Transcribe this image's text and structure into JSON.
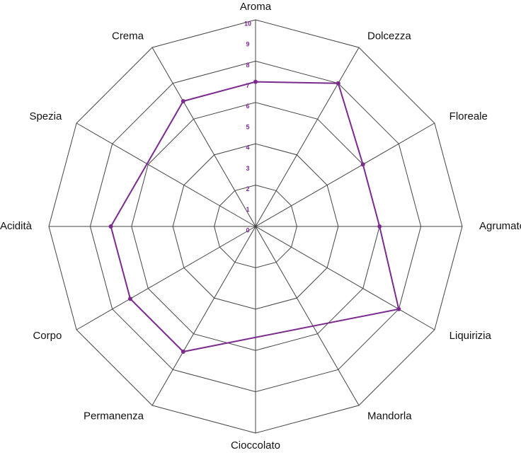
{
  "chart_data": {
    "type": "radar",
    "categories": [
      "Aroma",
      "Dolcezza",
      "Floreale",
      "Agrumato",
      "Liquirizia",
      "Mandorla",
      "Cioccolato",
      "Permanenza",
      "Corpo",
      "Acidità",
      "Spezia",
      "Crema"
    ],
    "series": [
      {
        "color": "#7b2a8e",
        "values": [
          7,
          8,
          6,
          6,
          8,
          null,
          null,
          7,
          7,
          7,
          null,
          7
        ]
      }
    ],
    "ylim": [
      0,
      10
    ],
    "yticks": [
      0,
      1,
      2,
      3,
      4,
      5,
      6,
      7,
      8,
      9,
      10
    ],
    "grid_rings": [
      2,
      4,
      6,
      8,
      10
    ]
  }
}
